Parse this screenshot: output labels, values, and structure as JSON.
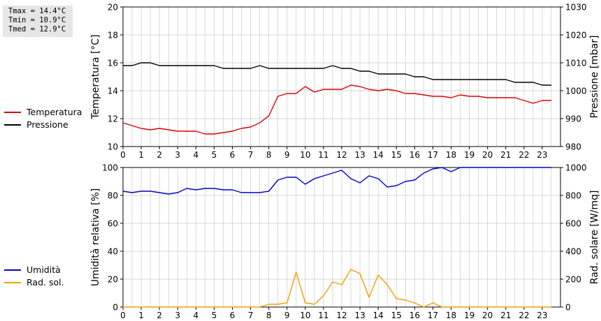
{
  "stats": {
    "tmax": "Tmax = 14.4°C",
    "tmin": "Tmin = 10.9°C",
    "tmed": "Tmed = 12.9°C"
  },
  "colors": {
    "temperature": "#dd0000",
    "pressure": "#000000",
    "humidity": "#0000cc",
    "radiation": "#f0a000",
    "grid": "#c8c8c8",
    "statsBox": "#e6e6e6"
  },
  "chart_data": [
    {
      "type": "line",
      "ylabel": "Temperatura [°C]",
      "y2label": "Pressione [mbar]",
      "xticks": [
        "0",
        "1",
        "2",
        "3",
        "4",
        "5",
        "6",
        "7",
        "8",
        "9",
        "10",
        "11",
        "12",
        "13",
        "14",
        "15",
        "16",
        "17",
        "18",
        "19",
        "20",
        "21",
        "22",
        "23"
      ],
      "xlim": [
        0,
        24
      ],
      "ylim": [
        10,
        20
      ],
      "yticks": [
        "10",
        "12",
        "14",
        "16",
        "18",
        "20"
      ],
      "y2lim": [
        980,
        1030
      ],
      "y2ticks": [
        "980",
        "990",
        "1000",
        "1010",
        "1020",
        "1030"
      ],
      "grid": true,
      "legend": "left",
      "series": [
        {
          "name": "Temperatura",
          "axis": "left",
          "x": [
            0,
            0.5,
            1,
            1.5,
            2,
            2.5,
            3,
            3.5,
            4,
            4.5,
            5,
            5.5,
            6,
            6.5,
            7,
            7.5,
            8,
            8.5,
            9,
            9.5,
            10,
            10.5,
            11,
            11.5,
            12,
            12.5,
            13,
            13.5,
            14,
            14.5,
            15,
            15.5,
            16,
            16.5,
            17,
            17.5,
            18,
            18.5,
            19,
            19.5,
            20,
            20.5,
            21,
            21.5,
            22,
            22.5,
            23,
            23.5
          ],
          "values": [
            11.7,
            11.5,
            11.3,
            11.2,
            11.3,
            11.2,
            11.1,
            11.1,
            11.1,
            10.9,
            10.9,
            11.0,
            11.1,
            11.3,
            11.4,
            11.7,
            12.2,
            13.6,
            13.8,
            13.8,
            14.3,
            13.9,
            14.1,
            14.1,
            14.1,
            14.4,
            14.3,
            14.1,
            14.0,
            14.1,
            14.0,
            13.8,
            13.8,
            13.7,
            13.6,
            13.6,
            13.5,
            13.7,
            13.6,
            13.6,
            13.5,
            13.5,
            13.5,
            13.5,
            13.3,
            13.1,
            13.3,
            13.3
          ]
        },
        {
          "name": "Pressione",
          "axis": "right",
          "x": [
            0,
            0.5,
            1,
            1.5,
            2,
            2.5,
            3,
            3.5,
            4,
            4.5,
            5,
            5.5,
            6,
            6.5,
            7,
            7.5,
            8,
            8.5,
            9,
            9.5,
            10,
            10.5,
            11,
            11.5,
            12,
            12.5,
            13,
            13.5,
            14,
            14.5,
            15,
            15.5,
            16,
            16.5,
            17,
            17.5,
            18,
            18.5,
            19,
            19.5,
            20,
            20.5,
            21,
            21.5,
            22,
            22.5,
            23,
            23.5
          ],
          "values": [
            1009,
            1009,
            1010,
            1010,
            1009,
            1009,
            1009,
            1009,
            1009,
            1009,
            1009,
            1008,
            1008,
            1008,
            1008,
            1009,
            1008,
            1008,
            1008,
            1008,
            1008,
            1008,
            1008,
            1009,
            1008,
            1008,
            1007,
            1007,
            1006,
            1006,
            1006,
            1006,
            1005,
            1005,
            1004,
            1004,
            1004,
            1004,
            1004,
            1004,
            1004,
            1004,
            1004,
            1003,
            1003,
            1003,
            1002,
            1002
          ]
        }
      ]
    },
    {
      "type": "line",
      "ylabel": "Umidità relativa [%]",
      "y2label": "Rad. solare [W/mq]",
      "xticks": [
        "0",
        "1",
        "2",
        "3",
        "4",
        "5",
        "6",
        "7",
        "8",
        "9",
        "10",
        "11",
        "12",
        "13",
        "14",
        "15",
        "16",
        "17",
        "18",
        "19",
        "20",
        "21",
        "22",
        "23"
      ],
      "xlim": [
        0,
        24
      ],
      "ylim": [
        0,
        100
      ],
      "yticks": [
        "0",
        "20",
        "40",
        "60",
        "80",
        "100"
      ],
      "y2lim": [
        0,
        1000
      ],
      "y2ticks": [
        "0",
        "200",
        "400",
        "600",
        "800",
        "1000"
      ],
      "grid": true,
      "legend": "left",
      "series": [
        {
          "name": "Umidità",
          "axis": "left",
          "x": [
            0,
            0.5,
            1,
            1.5,
            2,
            2.5,
            3,
            3.5,
            4,
            4.5,
            5,
            5.5,
            6,
            6.5,
            7,
            7.5,
            8,
            8.5,
            9,
            9.5,
            10,
            10.5,
            11,
            11.5,
            12,
            12.5,
            13,
            13.5,
            14,
            14.5,
            15,
            15.5,
            16,
            16.5,
            17,
            17.5,
            18,
            18.5,
            19,
            19.5,
            20,
            20.5,
            21,
            21.5,
            22,
            22.5,
            23,
            23.5
          ],
          "values": [
            83,
            82,
            83,
            83,
            82,
            81,
            82,
            85,
            84,
            85,
            85,
            84,
            84,
            82,
            82,
            82,
            83,
            91,
            93,
            93,
            88,
            92,
            94,
            96,
            98,
            92,
            89,
            94,
            92,
            86,
            87,
            90,
            91,
            96,
            99,
            100,
            97,
            100,
            100,
            100,
            100,
            100,
            100,
            100,
            100,
            100,
            100,
            100
          ]
        },
        {
          "name": "Rad. sol.",
          "axis": "right",
          "x": [
            0,
            0.5,
            1,
            1.5,
            2,
            2.5,
            3,
            3.5,
            4,
            4.5,
            5,
            5.5,
            6,
            6.5,
            7,
            7.5,
            8,
            8.5,
            9,
            9.5,
            10,
            10.5,
            11,
            11.5,
            12,
            12.5,
            13,
            13.5,
            14,
            14.5,
            15,
            15.5,
            16,
            16.5,
            17,
            17.5,
            18,
            18.5,
            19,
            19.5,
            20,
            20.5,
            21,
            21.5,
            22,
            22.5,
            23,
            23.5
          ],
          "values": [
            0,
            0,
            0,
            0,
            0,
            0,
            0,
            0,
            0,
            0,
            0,
            0,
            0,
            0,
            0,
            0,
            20,
            20,
            30,
            250,
            30,
            20,
            80,
            180,
            160,
            270,
            240,
            70,
            230,
            160,
            60,
            50,
            30,
            0,
            30,
            0,
            0,
            0,
            0,
            0,
            0,
            0,
            0,
            0,
            0,
            0,
            0,
            0
          ]
        }
      ]
    }
  ]
}
